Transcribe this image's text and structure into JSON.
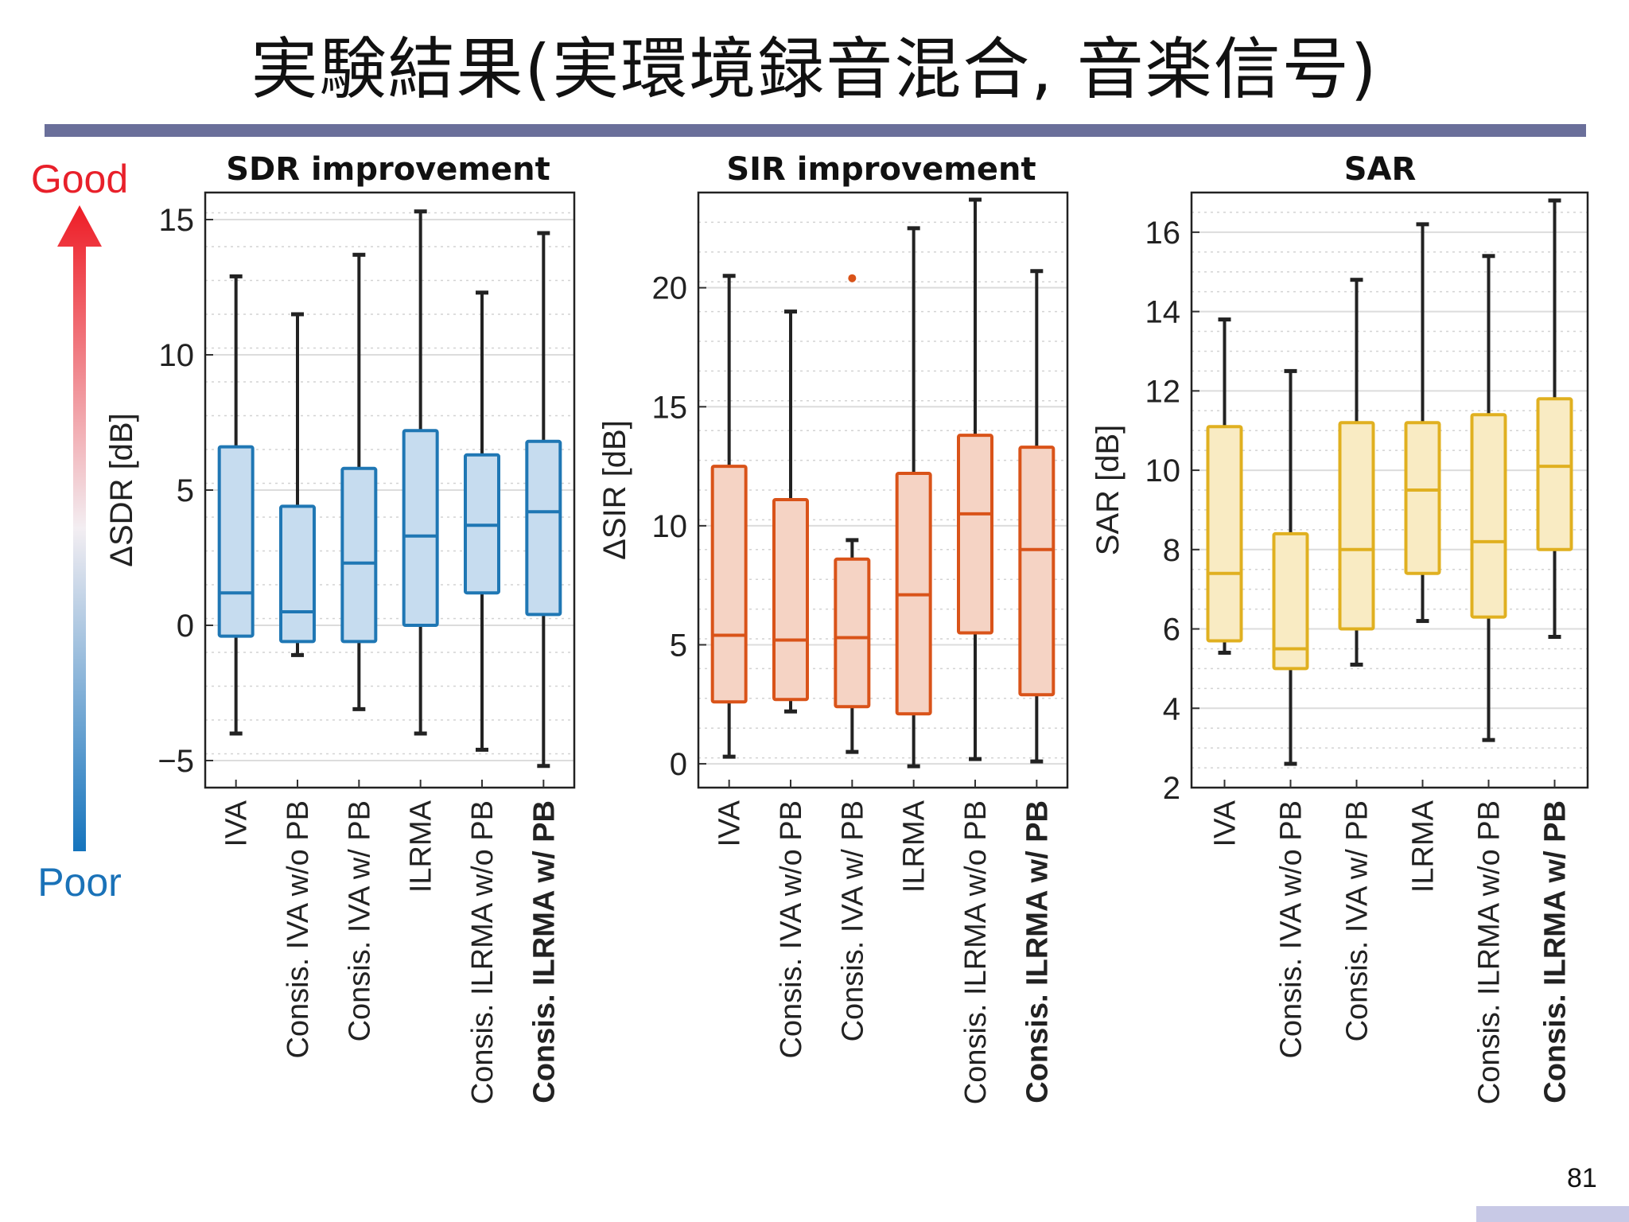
{
  "slide": {
    "title": "実験結果(実環境録音混合, 音楽信号)",
    "good_label": "Good",
    "poor_label": "Poor",
    "page_number": "81",
    "colors": {
      "rule": "#6a6f9a",
      "good": "#e8202a",
      "poor": "#1a72b8"
    }
  },
  "chart_data": [
    {
      "type": "boxplot",
      "title": "SDR improvement",
      "ylabel": "ΔSDR [dB]",
      "ylim": [
        -6,
        16
      ],
      "yticks": [
        -5,
        0,
        5,
        10,
        15
      ],
      "yticklabels": [
        "−5",
        "0",
        "5",
        "10",
        "15"
      ],
      "grid": true,
      "color": "#1f77b4",
      "fill": "#c6dcef",
      "categories": [
        "IVA",
        "Consis. IVA w/o PB",
        "Consis. IVA w/ PB",
        "ILRMA",
        "Consis. ILRMA w/o PB",
        "Consis. ILRMA w/ PB"
      ],
      "category_parts": [
        {
          "plain": "IVA",
          "bold": ""
        },
        {
          "plain": "Consis. IVA w/o PB",
          "bold": ""
        },
        {
          "plain": "Consis. IVA w/ PB",
          "bold": ""
        },
        {
          "plain": "ILRMA",
          "bold": ""
        },
        {
          "plain": "Consis. ILRMA w/o PB",
          "bold": ""
        },
        {
          "plain": "Consis. ",
          "bold": "ILRMA w/ PB"
        }
      ],
      "boxes": [
        {
          "whisker_low": -4.0,
          "q1": -0.4,
          "median": 1.2,
          "q3": 6.6,
          "whisker_high": 12.9
        },
        {
          "whisker_low": -1.1,
          "q1": -0.6,
          "median": 0.5,
          "q3": 4.4,
          "whisker_high": 11.5
        },
        {
          "whisker_low": -3.1,
          "q1": -0.6,
          "median": 2.3,
          "q3": 5.8,
          "whisker_high": 13.7
        },
        {
          "whisker_low": -4.0,
          "q1": 0.0,
          "median": 3.3,
          "q3": 7.2,
          "whisker_high": 15.3
        },
        {
          "whisker_low": -4.6,
          "q1": 1.2,
          "median": 3.7,
          "q3": 6.3,
          "whisker_high": 12.3
        },
        {
          "whisker_low": -5.2,
          "q1": 0.4,
          "median": 4.2,
          "q3": 6.8,
          "whisker_high": 14.5
        }
      ]
    },
    {
      "type": "boxplot",
      "title": "SIR improvement",
      "ylabel": "ΔSIR [dB]",
      "ylim": [
        -1,
        24
      ],
      "yticks": [
        0,
        5,
        10,
        15,
        20
      ],
      "yticklabels": [
        "0",
        "5",
        "10",
        "15",
        "20"
      ],
      "grid": true,
      "color": "#d95319",
      "fill": "#f5d3c4",
      "categories": [
        "IVA",
        "Consis. IVA w/o PB",
        "Consis. IVA w/ PB",
        "ILRMA",
        "Consis. ILRMA w/o PB",
        "Consis. ILRMA w/ PB"
      ],
      "category_parts": [
        {
          "plain": "IVA",
          "bold": ""
        },
        {
          "plain": "Consis. IVA w/o PB",
          "bold": ""
        },
        {
          "plain": "Consis. IVA w/ PB",
          "bold": ""
        },
        {
          "plain": "ILRMA",
          "bold": ""
        },
        {
          "plain": "Consis. ILRMA w/o PB",
          "bold": ""
        },
        {
          "plain": "Consis. ",
          "bold": "ILRMA w/ PB"
        }
      ],
      "boxes": [
        {
          "whisker_low": 0.3,
          "q1": 2.6,
          "median": 5.4,
          "q3": 12.5,
          "whisker_high": 20.5
        },
        {
          "whisker_low": 2.2,
          "q1": 2.7,
          "median": 5.2,
          "q3": 11.1,
          "whisker_high": 19.0
        },
        {
          "whisker_low": 0.5,
          "q1": 2.4,
          "median": 5.3,
          "q3": 8.6,
          "whisker_high": 9.4,
          "outliers": [
            20.4
          ]
        },
        {
          "whisker_low": -0.1,
          "q1": 2.1,
          "median": 7.1,
          "q3": 12.2,
          "whisker_high": 22.5
        },
        {
          "whisker_low": 0.2,
          "q1": 5.5,
          "median": 10.5,
          "q3": 13.8,
          "whisker_high": 23.7
        },
        {
          "whisker_low": 0.1,
          "q1": 2.9,
          "median": 9.0,
          "q3": 13.3,
          "whisker_high": 20.7
        }
      ]
    },
    {
      "type": "boxplot",
      "title": "SAR",
      "ylabel": "SAR [dB]",
      "ylim": [
        2,
        17
      ],
      "yticks": [
        2,
        4,
        6,
        8,
        10,
        12,
        14,
        16
      ],
      "yticklabels": [
        "2",
        "4",
        "6",
        "8",
        "10",
        "12",
        "14",
        "16"
      ],
      "grid": true,
      "color": "#e0b020",
      "fill": "#f9ebc3",
      "categories": [
        "IVA",
        "Consis. IVA w/o PB",
        "Consis. IVA w/ PB",
        "ILRMA",
        "Consis. ILRMA w/o PB",
        "Consis. ILRMA w/ PB"
      ],
      "category_parts": [
        {
          "plain": "IVA",
          "bold": ""
        },
        {
          "plain": "Consis. IVA w/o PB",
          "bold": ""
        },
        {
          "plain": "Consis. IVA w/ PB",
          "bold": ""
        },
        {
          "plain": "ILRMA",
          "bold": ""
        },
        {
          "plain": "Consis. ILRMA w/o PB",
          "bold": ""
        },
        {
          "plain": "Consis. ",
          "bold": "ILRMA w/ PB"
        }
      ],
      "boxes": [
        {
          "whisker_low": 5.4,
          "q1": 5.7,
          "median": 7.4,
          "q3": 11.1,
          "whisker_high": 13.8
        },
        {
          "whisker_low": 2.6,
          "q1": 5.0,
          "median": 5.5,
          "q3": 8.4,
          "whisker_high": 12.5
        },
        {
          "whisker_low": 5.1,
          "q1": 6.0,
          "median": 8.0,
          "q3": 11.2,
          "whisker_high": 14.8
        },
        {
          "whisker_low": 6.2,
          "q1": 7.4,
          "median": 9.5,
          "q3": 11.2,
          "whisker_high": 16.2
        },
        {
          "whisker_low": 3.2,
          "q1": 6.3,
          "median": 8.2,
          "q3": 11.4,
          "whisker_high": 15.4
        },
        {
          "whisker_low": 5.8,
          "q1": 8.0,
          "median": 10.1,
          "q3": 11.8,
          "whisker_high": 16.8
        }
      ]
    }
  ]
}
